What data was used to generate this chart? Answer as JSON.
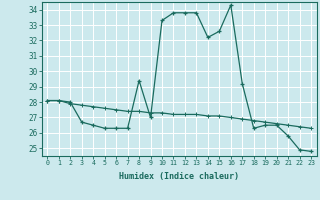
{
  "title": "",
  "xlabel": "Humidex (Indice chaleur)",
  "ylabel": "",
  "background_color": "#cce9ed",
  "grid_color": "#ffffff",
  "line_color": "#1a6b5e",
  "xlim": [
    -0.5,
    23.5
  ],
  "ylim": [
    24.5,
    34.5
  ],
  "yticks": [
    25,
    26,
    27,
    28,
    29,
    30,
    31,
    32,
    33,
    34
  ],
  "xticks": [
    0,
    1,
    2,
    3,
    4,
    5,
    6,
    7,
    8,
    9,
    10,
    11,
    12,
    13,
    14,
    15,
    16,
    17,
    18,
    19,
    20,
    21,
    22,
    23
  ],
  "series1_x": [
    0,
    1,
    2,
    3,
    4,
    5,
    6,
    7,
    8,
    9,
    10,
    11,
    12,
    13,
    14,
    15,
    16,
    17,
    18,
    19,
    20,
    21,
    22,
    23
  ],
  "series1_y": [
    28.1,
    28.1,
    28.0,
    26.7,
    26.5,
    26.3,
    26.3,
    26.3,
    29.4,
    27.0,
    33.3,
    33.8,
    33.8,
    33.8,
    32.2,
    32.6,
    34.3,
    29.2,
    26.3,
    26.5,
    26.5,
    25.8,
    24.9,
    24.8
  ],
  "series2_x": [
    0,
    1,
    2,
    3,
    4,
    5,
    6,
    7,
    8,
    9,
    10,
    11,
    12,
    13,
    14,
    15,
    16,
    17,
    18,
    19,
    20,
    21,
    22,
    23
  ],
  "series2_y": [
    28.1,
    28.1,
    27.9,
    27.8,
    27.7,
    27.6,
    27.5,
    27.4,
    27.4,
    27.3,
    27.3,
    27.2,
    27.2,
    27.2,
    27.1,
    27.1,
    27.0,
    26.9,
    26.8,
    26.7,
    26.6,
    26.5,
    26.4,
    26.3
  ]
}
